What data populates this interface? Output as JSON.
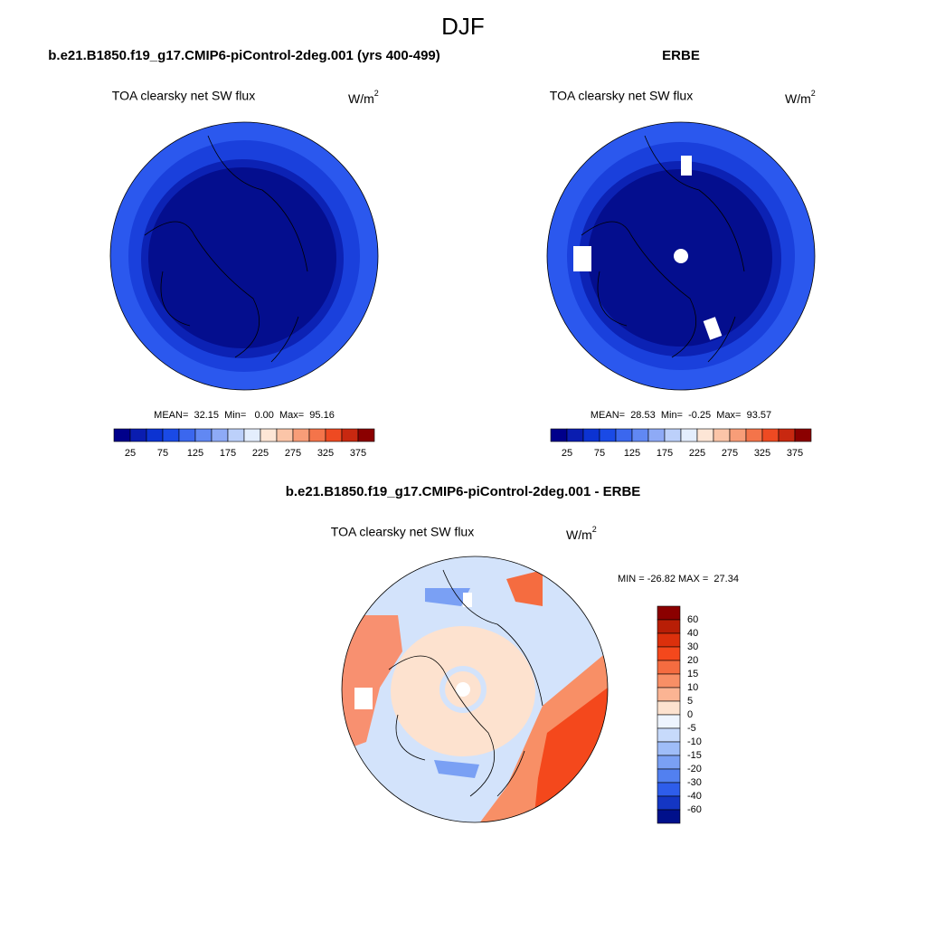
{
  "title": "DJF",
  "panels": [
    {
      "title": "b.e21.B1850.f19_g17.CMIP6-piControl-2deg.001 (yrs 400-499)",
      "subtitle": "TOA clearsky net SW flux",
      "units": "W/m",
      "units_sup": "2",
      "stats": "MEAN=  32.15  Min=   0.00  Max=  95.16",
      "colorbar": {
        "labels": [
          "25",
          "75",
          "125",
          "175",
          "225",
          "275",
          "325",
          "375"
        ],
        "colors": [
          "#00008b",
          "#0a1db0",
          "#0c33d2",
          "#1a4ae6",
          "#3b67ee",
          "#6188f3",
          "#8eaaf6",
          "#bcd0fa",
          "#e4eefd",
          "#fde6d6",
          "#fbc5a8",
          "#f89d78",
          "#f4744a",
          "#ee4a22",
          "#c82810",
          "#8b0000"
        ]
      }
    },
    {
      "title": "ERBE",
      "subtitle": "TOA clearsky net SW flux",
      "units": "W/m",
      "units_sup": "2",
      "stats": "MEAN=  28.53  Min=  -0.25  Max=  93.57",
      "colorbar": {
        "labels": [
          "25",
          "75",
          "125",
          "175",
          "225",
          "275",
          "325",
          "375"
        ],
        "colors": [
          "#00008b",
          "#0a1db0",
          "#0c33d2",
          "#1a4ae6",
          "#3b67ee",
          "#6188f3",
          "#8eaaf6",
          "#bcd0fa",
          "#e4eefd",
          "#fde6d6",
          "#fbc5a8",
          "#f89d78",
          "#f4744a",
          "#ee4a22",
          "#c82810",
          "#8b0000"
        ]
      }
    },
    {
      "title": "b.e21.B1850.f19_g17.CMIP6-piControl-2deg.001 - ERBE",
      "subtitle": "TOA clearsky net SW flux",
      "units": "W/m",
      "units_sup": "2",
      "stats": "MIN = -26.82 MAX =  27.34",
      "colorbar": {
        "labels": [
          "60",
          "40",
          "30",
          "20",
          "15",
          "10",
          "5",
          "0",
          "-5",
          "-10",
          "-15",
          "-20",
          "-30",
          "-40",
          "-60"
        ],
        "colors": [
          "#8b0000",
          "#b81e06",
          "#dc300c",
          "#f4481c",
          "#f56c40",
          "#f88f66",
          "#fbb493",
          "#fde2cf",
          "#eef4fe",
          "#c7dafb",
          "#9fbdf8",
          "#7aa0f4",
          "#5280f0",
          "#2e5deb",
          "#1436c4",
          "#00108b"
        ]
      }
    }
  ]
}
